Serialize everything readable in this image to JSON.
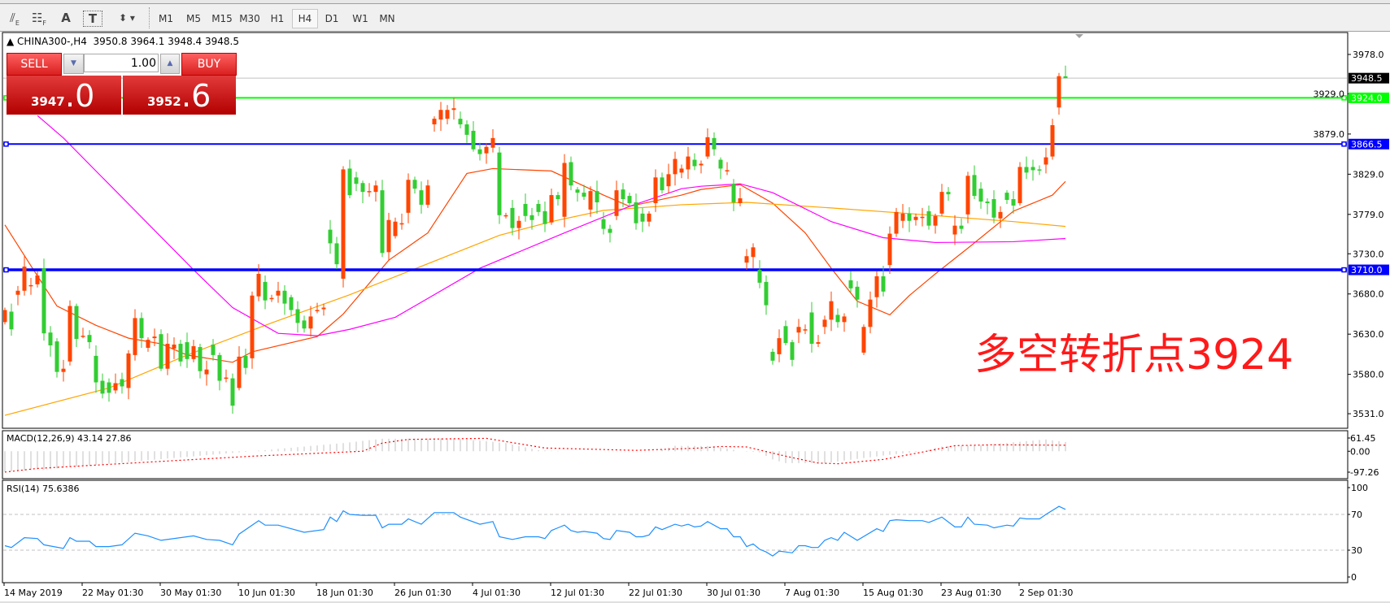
{
  "toolbar": {
    "tools": [
      {
        "icon": "line-studies-icon",
        "label": "E"
      },
      {
        "icon": "grid-fibo-icon",
        "label": "F"
      },
      {
        "icon": "text-icon",
        "label": "A"
      },
      {
        "icon": "text-label-icon",
        "label": "T"
      },
      {
        "icon": "arrows-dropdown-icon",
        "label": ""
      }
    ],
    "timeframes": [
      "M1",
      "M5",
      "M15",
      "M30",
      "H1",
      "H4",
      "D1",
      "W1",
      "MN"
    ],
    "active_timeframe": "H4"
  },
  "header": {
    "symbol": "CHINA300-,H4",
    "open": "3950.8",
    "high": "3964.1",
    "low": "3948.4",
    "close": "3948.5"
  },
  "trade_panel": {
    "sell_label": "SELL",
    "buy_label": "BUY",
    "volume": "1.00",
    "sell_price_main": "3947",
    "sell_price_frac": ".0",
    "buy_price_main": "3952",
    "buy_price_frac": ".6"
  },
  "price_axis": {
    "labels": [
      "3978.0",
      "3929.0",
      "3879.0",
      "3829.0",
      "3779.0",
      "3730.0",
      "3680.0",
      "3630.0",
      "3580.0",
      "3531.0"
    ]
  },
  "current_price": {
    "value": 3948.5,
    "label": "3948.5"
  },
  "levels": [
    {
      "price": 3924.0,
      "label": "3924.0",
      "color": "#00ff00"
    },
    {
      "price": 3866.5,
      "label": "3866.5",
      "color": "#0000ff"
    },
    {
      "price": 3710.0,
      "label": "3710.0",
      "color": "#0000ff"
    }
  ],
  "annotation": {
    "text": "多空转折点3924",
    "color": "#ff1a1a"
  },
  "colors": {
    "bull": "#ff4500",
    "bear": "#32cd32"
  },
  "candles_open_close": [
    [
      3645,
      3660
    ],
    [
      3658,
      3636
    ],
    [
      3679,
      3684
    ],
    [
      3684,
      3714
    ],
    [
      3690,
      3691
    ],
    [
      3692,
      3703
    ],
    [
      3712,
      3631
    ],
    [
      3632,
      3616
    ],
    [
      3621,
      3583
    ],
    [
      3583,
      3587
    ],
    [
      3596,
      3665
    ],
    [
      3665,
      3624
    ],
    [
      3628,
      3628
    ],
    [
      3629,
      3620
    ],
    [
      3603,
      3570
    ],
    [
      3572,
      3556
    ],
    [
      3570,
      3557
    ],
    [
      3560,
      3569
    ],
    [
      3574,
      3565
    ],
    [
      3563,
      3606
    ],
    [
      3604,
      3650
    ],
    [
      3650,
      3625
    ],
    [
      3613,
      3623
    ],
    [
      3625,
      3627
    ],
    [
      3630,
      3587
    ],
    [
      3587,
      3618
    ],
    [
      3612,
      3617
    ],
    [
      3618,
      3596
    ],
    [
      3620,
      3599
    ],
    [
      3599,
      3615
    ],
    [
      3614,
      3584
    ],
    [
      3580,
      3586
    ],
    [
      3617,
      3604
    ],
    [
      3604,
      3572
    ],
    [
      3575,
      3576
    ],
    [
      3575,
      3541
    ],
    [
      3563,
      3602
    ],
    [
      3603,
      3588
    ],
    [
      3600,
      3678
    ],
    [
      3677,
      3705
    ],
    [
      3695,
      3672
    ],
    [
      3674,
      3675
    ],
    [
      3678,
      3684
    ],
    [
      3684,
      3668
    ],
    [
      3676,
      3660
    ],
    [
      3661,
      3644
    ],
    [
      3647,
      3637
    ],
    [
      3637,
      3652
    ],
    [
      3659,
      3660
    ],
    [
      3661,
      3663
    ],
    [
      3760,
      3743
    ],
    [
      3743,
      3717
    ],
    [
      3699,
      3835
    ],
    [
      3836,
      3803
    ],
    [
      3825,
      3817
    ],
    [
      3818,
      3807
    ],
    [
      3808,
      3808
    ],
    [
      3807,
      3815
    ],
    [
      3809,
      3731
    ],
    [
      3732,
      3772
    ],
    [
      3752,
      3770
    ],
    [
      3768,
      3768
    ],
    [
      3781,
      3822
    ],
    [
      3822,
      3811
    ],
    [
      3809,
      3791
    ],
    [
      3791,
      3815
    ],
    [
      3891,
      3898
    ],
    [
      3897,
      3909
    ],
    [
      3898,
      3909
    ],
    [
      3909,
      3911
    ],
    [
      3898,
      3891
    ],
    [
      3891,
      3878
    ],
    [
      3883,
      3860
    ],
    [
      3860,
      3854
    ],
    [
      3855,
      3863
    ],
    [
      3862,
      3874
    ],
    [
      3856,
      3778
    ],
    [
      3778,
      3778
    ],
    [
      3787,
      3762
    ],
    [
      3762,
      3771
    ],
    [
      3792,
      3777
    ],
    [
      3778,
      3772
    ],
    [
      3792,
      3782
    ],
    [
      3783,
      3767
    ],
    [
      3769,
      3803
    ],
    [
      3803,
      3798
    ],
    [
      3776,
      3843
    ],
    [
      3844,
      3815
    ],
    [
      3810,
      3806
    ],
    [
      3806,
      3801
    ],
    [
      3785,
      3808
    ],
    [
      3808,
      3794
    ],
    [
      3773,
      3761
    ],
    [
      3761,
      3756
    ],
    [
      3777,
      3809
    ],
    [
      3810,
      3798
    ],
    [
      3802,
      3793
    ],
    [
      3794,
      3768
    ],
    [
      3780,
      3770
    ],
    [
      3770,
      3780
    ],
    [
      3793,
      3825
    ],
    [
      3825,
      3809
    ],
    [
      3814,
      3829
    ],
    [
      3829,
      3848
    ],
    [
      3831,
      3836
    ],
    [
      3835,
      3851
    ],
    [
      3847,
      3839
    ],
    [
      3840,
      3842
    ],
    [
      3851,
      3875
    ],
    [
      3874,
      3860
    ],
    [
      3847,
      3836
    ],
    [
      3834,
      3834
    ],
    [
      3817,
      3794
    ],
    [
      3793,
      3799
    ],
    [
      3719,
      3727
    ],
    [
      3726,
      3738
    ],
    [
      3710,
      3694
    ],
    [
      3695,
      3666
    ],
    [
      3608,
      3597
    ],
    [
      3605,
      3625
    ],
    [
      3640,
      3619
    ],
    [
      3620,
      3598
    ],
    [
      3632,
      3639
    ],
    [
      3636,
      3636
    ],
    [
      3657,
      3618
    ],
    [
      3618,
      3620
    ],
    [
      3639,
      3648
    ],
    [
      3648,
      3671
    ],
    [
      3654,
      3645
    ],
    [
      3645,
      3652
    ],
    [
      3697,
      3687
    ],
    [
      3689,
      3673
    ],
    [
      3607,
      3639
    ],
    [
      3639,
      3673
    ],
    [
      3676,
      3702
    ],
    [
      3702,
      3683
    ],
    [
      3716,
      3755
    ],
    [
      3755,
      3782
    ],
    [
      3771,
      3780
    ],
    [
      3780,
      3771
    ],
    [
      3772,
      3776
    ],
    [
      3776,
      3776
    ],
    [
      3783,
      3765
    ],
    [
      3765,
      3777
    ],
    [
      3780,
      3807
    ],
    [
      3807,
      3804
    ],
    [
      3754,
      3765
    ],
    [
      3765,
      3761
    ],
    [
      3779,
      3827
    ],
    [
      3828,
      3802
    ],
    [
      3811,
      3795
    ],
    [
      3795,
      3793
    ],
    [
      3798,
      3775
    ],
    [
      3774,
      3782
    ],
    [
      3806,
      3797
    ],
    [
      3798,
      3790
    ],
    [
      3793,
      3838
    ],
    [
      3838,
      3831
    ],
    [
      3838,
      3834
    ],
    [
      3835,
      3834
    ],
    [
      3841,
      3850
    ],
    [
      3851,
      3890
    ],
    [
      3912,
      3951
    ],
    [
      3950.8,
      3948.5
    ]
  ],
  "moving_averages": [
    {
      "color": "#ff4500",
      "points": [
        [
          0,
          3766
        ],
        [
          4,
          3715
        ],
        [
          8,
          3665
        ],
        [
          14,
          3641
        ],
        [
          19,
          3625
        ],
        [
          24,
          3618
        ],
        [
          28,
          3604
        ],
        [
          35,
          3595
        ],
        [
          38,
          3608
        ],
        [
          48,
          3627
        ],
        [
          52,
          3655
        ],
        [
          59,
          3722
        ],
        [
          65,
          3756
        ],
        [
          71,
          3830
        ],
        [
          75,
          3836
        ],
        [
          84,
          3833
        ],
        [
          92,
          3803
        ],
        [
          96,
          3789
        ],
        [
          104,
          3803
        ],
        [
          107,
          3810
        ],
        [
          113,
          3816
        ],
        [
          118,
          3793
        ],
        [
          123,
          3756
        ],
        [
          127,
          3712
        ],
        [
          131,
          3671
        ],
        [
          136,
          3654
        ],
        [
          139,
          3678
        ],
        [
          143,
          3705
        ],
        [
          148,
          3737
        ],
        [
          155,
          3783
        ],
        [
          161,
          3803
        ],
        [
          163,
          3820
        ]
      ]
    },
    {
      "color": "#ffa500",
      "points": [
        [
          0,
          3529
        ],
        [
          16,
          3563
        ],
        [
          28,
          3604
        ],
        [
          41,
          3644
        ],
        [
          53,
          3679
        ],
        [
          76,
          3753
        ],
        [
          84,
          3770
        ],
        [
          92,
          3784
        ],
        [
          104,
          3791
        ],
        [
          114,
          3794
        ],
        [
          127,
          3787
        ],
        [
          139,
          3780
        ],
        [
          155,
          3770
        ],
        [
          163,
          3764
        ]
      ]
    },
    {
      "color": "#ff00ff",
      "points": [
        [
          5,
          3902
        ],
        [
          9,
          3874
        ],
        [
          29,
          3710
        ],
        [
          35,
          3663
        ],
        [
          42,
          3631
        ],
        [
          48,
          3628
        ],
        [
          53,
          3636
        ],
        [
          60,
          3651
        ],
        [
          73,
          3712
        ],
        [
          86,
          3756
        ],
        [
          96,
          3789
        ],
        [
          104,
          3811
        ],
        [
          107,
          3814
        ],
        [
          113,
          3817
        ],
        [
          118,
          3806
        ],
        [
          127,
          3770
        ],
        [
          135,
          3750
        ],
        [
          143,
          3744
        ],
        [
          155,
          3745
        ],
        [
          163,
          3749
        ]
      ]
    }
  ],
  "macd": {
    "name": "MACD(12,26,9)",
    "main_value": "43.14",
    "signal_value": "27.86",
    "axis_labels": [
      "61.45",
      "0.00",
      "-97.26"
    ],
    "range": [
      -97.26,
      61.45
    ],
    "histogram": [
      [
        0,
        -95
      ],
      [
        6,
        -85
      ],
      [
        22,
        -42
      ],
      [
        38,
        0
      ],
      [
        52,
        38
      ],
      [
        58,
        58
      ],
      [
        69,
        60
      ],
      [
        77,
        38
      ],
      [
        82,
        5
      ],
      [
        86,
        0
      ],
      [
        100,
        0
      ],
      [
        103,
        25
      ],
      [
        109,
        24
      ],
      [
        113,
        0
      ],
      [
        116,
        -5
      ],
      [
        118,
        -38
      ],
      [
        120,
        -55
      ],
      [
        126,
        -55
      ],
      [
        135,
        -20
      ],
      [
        141,
        0
      ],
      [
        144,
        22
      ],
      [
        150,
        28
      ],
      [
        160,
        55
      ],
      [
        163,
        43
      ]
    ],
    "signal": [
      [
        0,
        -97
      ],
      [
        5,
        -80
      ],
      [
        38,
        -23
      ],
      [
        55,
        0
      ],
      [
        58,
        38
      ],
      [
        62,
        55
      ],
      [
        74,
        60
      ],
      [
        83,
        15
      ],
      [
        97,
        4
      ],
      [
        107,
        15
      ],
      [
        110,
        22
      ],
      [
        114,
        20
      ],
      [
        120,
        -23
      ],
      [
        125,
        -55
      ],
      [
        128,
        -58
      ],
      [
        135,
        -38
      ],
      [
        141,
        -4
      ],
      [
        146,
        26
      ],
      [
        152,
        30
      ],
      [
        163,
        28
      ]
    ],
    "histogram_color": "#c0c0c0",
    "signal_color": "#ff0000"
  },
  "rsi": {
    "name": "RSI(14)",
    "value": "75.6386",
    "axis_labels": [
      "100",
      "70",
      "30",
      "0"
    ],
    "levels": [
      70,
      30
    ],
    "color": "#1e90ff",
    "points": [
      [
        0,
        35
      ],
      [
        1,
        33
      ],
      [
        3,
        44
      ],
      [
        5,
        43
      ],
      [
        6,
        36
      ],
      [
        9,
        32
      ],
      [
        10,
        44
      ],
      [
        11,
        40
      ],
      [
        13,
        40
      ],
      [
        14,
        34
      ],
      [
        16,
        34
      ],
      [
        18,
        36
      ],
      [
        20,
        49
      ],
      [
        22,
        46
      ],
      [
        24,
        41
      ],
      [
        29,
        46
      ],
      [
        31,
        42
      ],
      [
        33,
        41
      ],
      [
        35,
        36
      ],
      [
        36,
        48
      ],
      [
        39,
        63
      ],
      [
        40,
        58
      ],
      [
        42,
        58
      ],
      [
        46,
        50
      ],
      [
        49,
        53
      ],
      [
        50,
        67
      ],
      [
        51,
        62
      ],
      [
        52,
        74
      ],
      [
        53,
        70
      ],
      [
        55,
        69
      ],
      [
        57,
        69
      ],
      [
        58,
        55
      ],
      [
        59,
        59
      ],
      [
        61,
        59
      ],
      [
        62,
        65
      ],
      [
        64,
        59
      ],
      [
        66,
        72
      ],
      [
        69,
        72
      ],
      [
        70,
        67
      ],
      [
        73,
        59
      ],
      [
        75,
        62
      ],
      [
        76,
        45
      ],
      [
        78,
        42
      ],
      [
        80,
        45
      ],
      [
        82,
        45
      ],
      [
        83,
        43
      ],
      [
        84,
        52
      ],
      [
        85,
        55
      ],
      [
        86,
        58
      ],
      [
        87,
        52
      ],
      [
        88,
        50
      ],
      [
        89,
        51
      ],
      [
        91,
        49
      ],
      [
        92,
        43
      ],
      [
        93,
        42
      ],
      [
        94,
        52
      ],
      [
        96,
        50
      ],
      [
        97,
        45
      ],
      [
        98,
        45
      ],
      [
        99,
        47
      ],
      [
        100,
        56
      ],
      [
        101,
        53
      ],
      [
        103,
        59
      ],
      [
        104,
        57
      ],
      [
        105,
        59
      ],
      [
        106,
        56
      ],
      [
        107,
        57
      ],
      [
        108,
        62
      ],
      [
        110,
        54
      ],
      [
        111,
        54
      ],
      [
        112,
        45
      ],
      [
        113,
        45
      ],
      [
        114,
        34
      ],
      [
        115,
        37
      ],
      [
        116,
        31
      ],
      [
        117,
        28
      ],
      [
        118,
        23.5
      ],
      [
        119,
        29
      ],
      [
        120,
        28
      ],
      [
        121,
        27
      ],
      [
        122,
        35
      ],
      [
        123,
        35
      ],
      [
        124,
        33
      ],
      [
        125,
        33
      ],
      [
        126,
        41
      ],
      [
        127,
        44
      ],
      [
        128,
        41
      ],
      [
        129,
        50
      ],
      [
        131,
        41
      ],
      [
        134,
        54
      ],
      [
        135,
        51
      ],
      [
        136,
        63
      ],
      [
        137,
        64
      ],
      [
        139,
        63
      ],
      [
        141,
        63
      ],
      [
        142,
        61
      ],
      [
        144,
        67
      ],
      [
        146,
        56
      ],
      [
        147,
        56
      ],
      [
        148,
        67
      ],
      [
        149,
        59
      ],
      [
        151,
        58
      ],
      [
        152,
        55
      ],
      [
        154,
        58
      ],
      [
        155,
        57
      ],
      [
        156,
        66
      ],
      [
        157,
        65
      ],
      [
        159,
        65
      ],
      [
        160,
        70
      ],
      [
        162,
        79
      ],
      [
        163,
        75.6
      ]
    ]
  },
  "time_axis": [
    "14 May 2019",
    "22 May 01:30",
    "30 May 01:30",
    "10 Jun 01:30",
    "18 Jun 01:30",
    "26 Jun 01:30",
    "4 Jul 01:30",
    "12 Jul 01:30",
    "22 Jul 01:30",
    "30 Jul 01:30",
    "7 Aug 01:30",
    "15 Aug 01:30",
    "23 Aug 01:30",
    "2 Sep 01:30"
  ]
}
